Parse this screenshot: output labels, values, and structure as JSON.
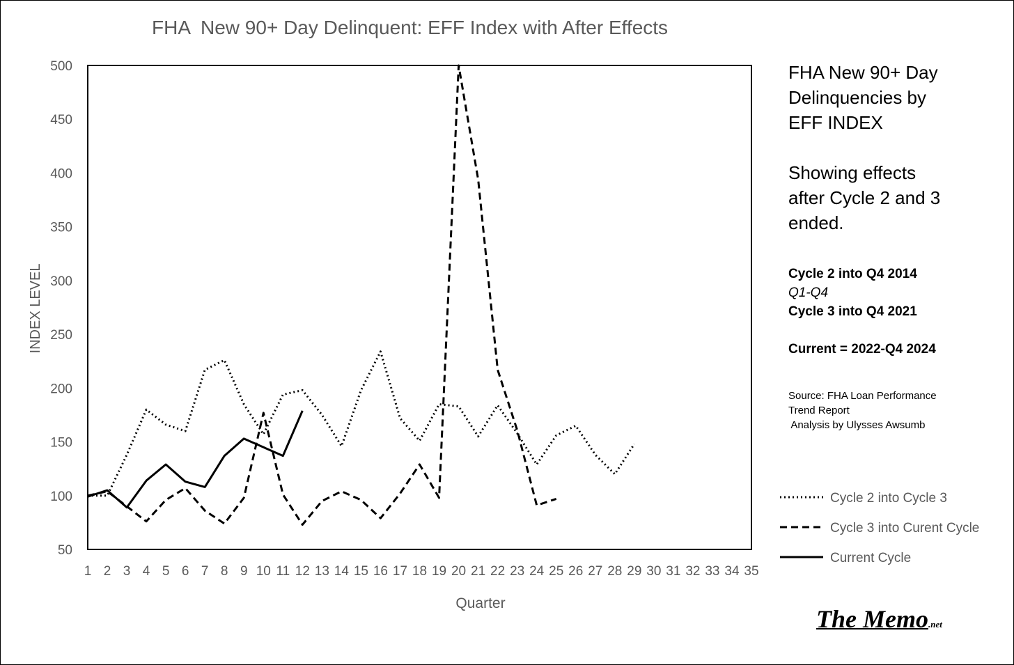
{
  "chart_data": {
    "type": "line",
    "title": "FHA  New 90+ Day Delinquent: EFF Index with After Effects",
    "xlabel": "Quarter",
    "ylabel": "INDEX LEVEL",
    "xlim": [
      1,
      35
    ],
    "ylim": [
      50,
      500
    ],
    "yticks": [
      50,
      100,
      150,
      200,
      250,
      300,
      350,
      400,
      450,
      500
    ],
    "xticks": [
      1,
      2,
      3,
      4,
      5,
      6,
      7,
      8,
      9,
      10,
      11,
      12,
      13,
      14,
      15,
      16,
      17,
      18,
      19,
      20,
      21,
      22,
      23,
      24,
      25,
      26,
      27,
      28,
      29,
      30,
      31,
      32,
      33,
      34,
      35
    ],
    "grid": false,
    "legend_position": "right",
    "series": [
      {
        "name": "Cycle 2 into Cycle 3",
        "style": "dotted",
        "x": [
          1,
          2,
          3,
          4,
          5,
          6,
          7,
          8,
          9,
          10,
          11,
          12,
          13,
          14,
          15,
          16,
          17,
          18,
          19,
          20,
          21,
          22,
          23,
          24,
          25,
          26,
          27,
          28,
          29
        ],
        "values": [
          100,
          100,
          138,
          180,
          166,
          160,
          217,
          226,
          185,
          157,
          194,
          198,
          175,
          146,
          198,
          234,
          172,
          151,
          185,
          183,
          155,
          184,
          158,
          129,
          156,
          165,
          138,
          120,
          148
        ]
      },
      {
        "name": "Cycle 3 into Curent Cycle",
        "style": "dashed",
        "x": [
          1,
          2,
          3,
          4,
          5,
          6,
          7,
          8,
          9,
          10,
          11,
          12,
          13,
          14,
          15,
          16,
          17,
          18,
          19,
          20,
          21,
          22,
          23,
          24,
          25
        ],
        "values": [
          100,
          104,
          90,
          76,
          96,
          107,
          86,
          74,
          98,
          177,
          101,
          73,
          95,
          104,
          96,
          79,
          102,
          129,
          98,
          500,
          394,
          217,
          161,
          91,
          97
        ]
      },
      {
        "name": "Current Cycle",
        "style": "solid",
        "x": [
          1,
          2,
          3,
          4,
          5,
          6,
          7,
          8,
          9,
          10,
          11,
          12
        ],
        "values": [
          99,
          105,
          89,
          114,
          129,
          113,
          108,
          137,
          153,
          145,
          137,
          179
        ]
      }
    ]
  },
  "side_panel": {
    "heading_lines": [
      "FHA New 90+ Day",
      "Delinquencies by",
      "EFF INDEX"
    ],
    "sub_lines": [
      "Showing effects",
      "after Cycle 2 and 3",
      "ended."
    ],
    "cycle2": "Cycle 2 into Q4 2014",
    "q_range": "Q1-Q4",
    "cycle3": "Cycle 3 into Q4 2021",
    "current": "Current = 2022-Q4 2024",
    "source_lines": [
      "Source: FHA Loan Performance",
      "Trend Report",
      " Analysis by Ulysses Awsumb"
    ]
  },
  "logo": {
    "main": "The Memo",
    "suffix": ".net"
  },
  "colors": {
    "line": "#000000",
    "text": "#595959",
    "background": "#ffffff"
  }
}
